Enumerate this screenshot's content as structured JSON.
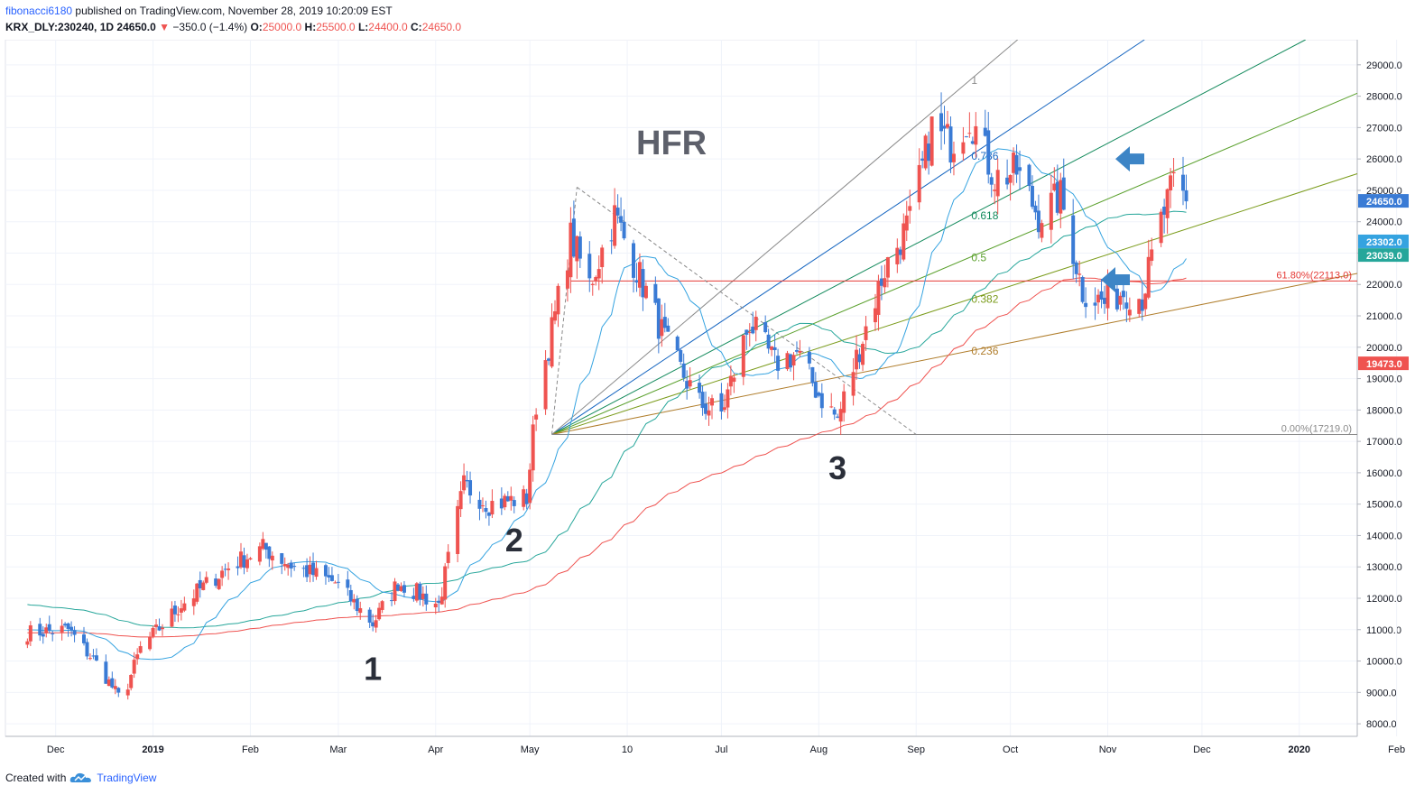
{
  "header": {
    "author": "fibonacci6180",
    "published": "published on TradingView.com, November 28, 2019 10:20:09 EST",
    "symbol": "KRX_DLY:230240, 1D",
    "last": "24650.0",
    "change": "−350.0 (−1.4%)",
    "o_label": "O:",
    "o_value": "25000.0",
    "h_label": "H:",
    "h_value": "25500.0",
    "l_label": "L:",
    "l_value": "24400.0",
    "c_label": "C:",
    "c_value": "24650.0"
  },
  "footer": {
    "created": "Created with",
    "brand": "TradingView"
  },
  "colors": {
    "up": "#ef5350",
    "down": "#3a7bd5",
    "ma_fast": "#35a3e0",
    "ma_mid": "#26a69a",
    "ma_slow": "#ef5350",
    "arrow": "#3d85c6"
  },
  "chart_data": {
    "type": "candlestick",
    "title": "HFR",
    "ylim": [
      7600,
      29800
    ],
    "x_axis_labels": [
      "Dec",
      "2019",
      "Feb",
      "Mar",
      "Apr",
      "May",
      "10",
      "Jul",
      "Aug",
      "Sep",
      "Oct",
      "Nov",
      "Dec",
      "2020",
      "Feb"
    ],
    "y_axis_ticks": [
      "29000.0",
      "28000.0",
      "27000.0",
      "26000.0",
      "25000.0",
      "24000.0",
      "23000.0",
      "22000.0",
      "21000.0",
      "20000.0",
      "19000.0",
      "18000.0",
      "17000.0",
      "16000.0",
      "15000.0",
      "14000.0",
      "13000.0",
      "12000.0",
      "11000.0",
      "10000.0",
      "9000.0",
      "8000.0"
    ],
    "price_tags": [
      {
        "value": 24650,
        "text": "24650.0",
        "color": "#3a7bd5"
      },
      {
        "value": 23302,
        "text": "23302.0",
        "color": "#35a3e0"
      },
      {
        "value": 23039,
        "text": "23039.0",
        "color": "#26a69a"
      },
      {
        "value": 19473,
        "text": "19473.0",
        "color": "#ef5350"
      }
    ],
    "anchors": [
      {
        "x": "2018-11-22",
        "y": 10900
      },
      {
        "x": "2019-04-26",
        "y": 12000
      },
      {
        "x": "2019-05-08",
        "y": 17219
      },
      {
        "x": "2019-05-16",
        "y": 25100
      },
      {
        "x": "2019-08-07",
        "y": 17300
      },
      {
        "x": "2019-09-01",
        "y": 17219
      },
      {
        "x": "2019-09-18",
        "y": 28500
      },
      {
        "x": "2019-10-31",
        "y": 20800
      },
      {
        "x": "2019-11-26",
        "y": 24650
      }
    ],
    "fib_levels": [
      {
        "label": "0.786",
        "value": 0.786,
        "color": "#1565c0"
      },
      {
        "label": "0.618",
        "value": 0.618,
        "color": "#138a5c"
      },
      {
        "label": "0.5",
        "value": 0.5,
        "color": "#5aa02c"
      },
      {
        "label": "0.382",
        "value": 0.382,
        "color": "#7a9b1a"
      },
      {
        "label": "0.236",
        "value": 0.236,
        "color": "#b07d2b"
      },
      {
        "label": "1",
        "value": 1,
        "color": "#8a8a8a"
      }
    ],
    "fib_retracement": [
      {
        "label": "61.80%(22113.0)",
        "value": 22113,
        "color": "#e53935"
      },
      {
        "label": "0.00%(17219.0)",
        "value": 17219,
        "color": "#8a8a8a"
      }
    ],
    "wave_labels": [
      "1",
      "2",
      "3"
    ],
    "arrows": 2
  }
}
